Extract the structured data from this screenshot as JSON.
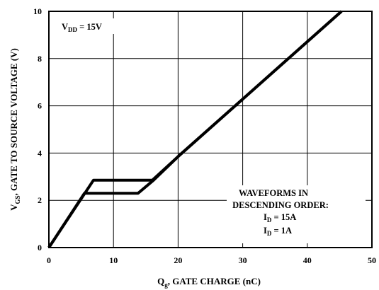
{
  "chart_data": {
    "type": "line",
    "xlabel": {
      "main": "Q",
      "sub": "g",
      "rest": ", GATE CHARGE (nC)"
    },
    "ylabel": {
      "main": "V",
      "sub": "GS",
      "rest": ", GATE TO SOURCE VOLTAGE (V)"
    },
    "xlim": [
      0,
      50
    ],
    "ylim": [
      0,
      10
    ],
    "x_ticks": [
      0,
      10,
      20,
      30,
      40,
      50
    ],
    "y_ticks": [
      0,
      2,
      4,
      6,
      8,
      10
    ],
    "x_tick_labels": [
      "0",
      "10",
      "20",
      "30",
      "40",
      "50"
    ],
    "y_tick_labels": [
      "0",
      "2",
      "4",
      "6",
      "8",
      "10"
    ],
    "grid": true,
    "series": [
      {
        "points": [
          [
            0,
            0
          ],
          [
            6.9,
            2.85
          ],
          [
            16.0,
            2.85
          ],
          [
            20.2,
            3.9
          ],
          [
            45.3,
            10
          ]
        ]
      },
      {
        "points": [
          [
            0,
            0
          ],
          [
            5.5,
            2.3
          ],
          [
            13.8,
            2.3
          ],
          [
            16.2,
            2.85
          ],
          [
            20.2,
            3.9
          ],
          [
            45.3,
            10
          ]
        ]
      }
    ],
    "annotations": {
      "vdd": {
        "main": "V",
        "sub": "DD",
        "rest": " = 15V"
      },
      "waveforms_line1": "WAVEFORMS IN",
      "waveforms_line2": "DESCENDING ORDER:",
      "id1": {
        "main": "I",
        "sub": "D",
        "rest": " = 15A"
      },
      "id2": {
        "main": "I",
        "sub": "D",
        "rest": " = 1A"
      }
    },
    "colors": {
      "line": "#000000",
      "grid": "#000000",
      "background": "#ffffff"
    }
  }
}
